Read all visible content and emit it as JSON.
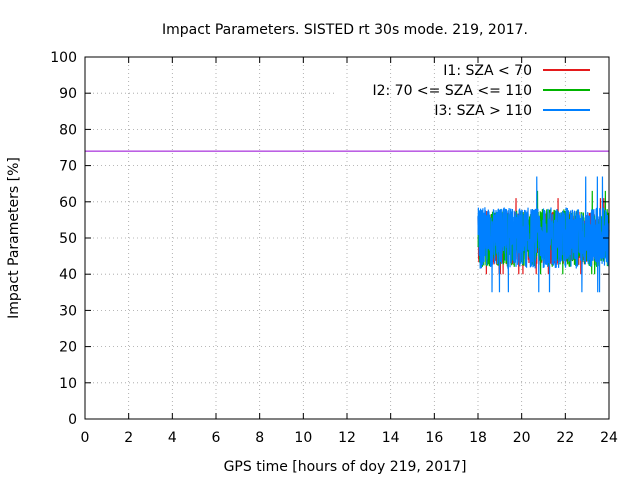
{
  "chart_data": {
    "type": "line",
    "title": "Impact Parameters. SISTED rt 30s mode. 219, 2017.",
    "xlabel": "GPS time [hours of doy 219, 2017]",
    "ylabel": "Impact Parameters [%]",
    "xlim": [
      0,
      24
    ],
    "ylim": [
      0,
      100
    ],
    "xticks": [
      0,
      2,
      4,
      6,
      8,
      10,
      12,
      14,
      16,
      18,
      20,
      22,
      24
    ],
    "yticks": [
      0,
      10,
      20,
      30,
      40,
      50,
      60,
      70,
      80,
      90,
      100
    ],
    "grid": true,
    "legend_position": "top-right",
    "reference_line": {
      "y": 74,
      "color": "#9400d3"
    },
    "series": [
      {
        "name": "I1: SZA < 70",
        "color": "#e41a1c",
        "x_range": [
          18,
          24
        ],
        "mean": 50,
        "min": 40,
        "max": 61,
        "noise": 7.5
      },
      {
        "name": "I2: 70 <= SZA <= 110",
        "color": "#00b400",
        "x_range": [
          18,
          24
        ],
        "mean": 50,
        "min": 40,
        "max": 63,
        "noise": 8.0
      },
      {
        "name": "I3: SZA > 110",
        "color": "#0080ff",
        "x_range": [
          18,
          24
        ],
        "mean": 50,
        "min": 35,
        "max": 67,
        "noise": 8.5
      }
    ]
  }
}
